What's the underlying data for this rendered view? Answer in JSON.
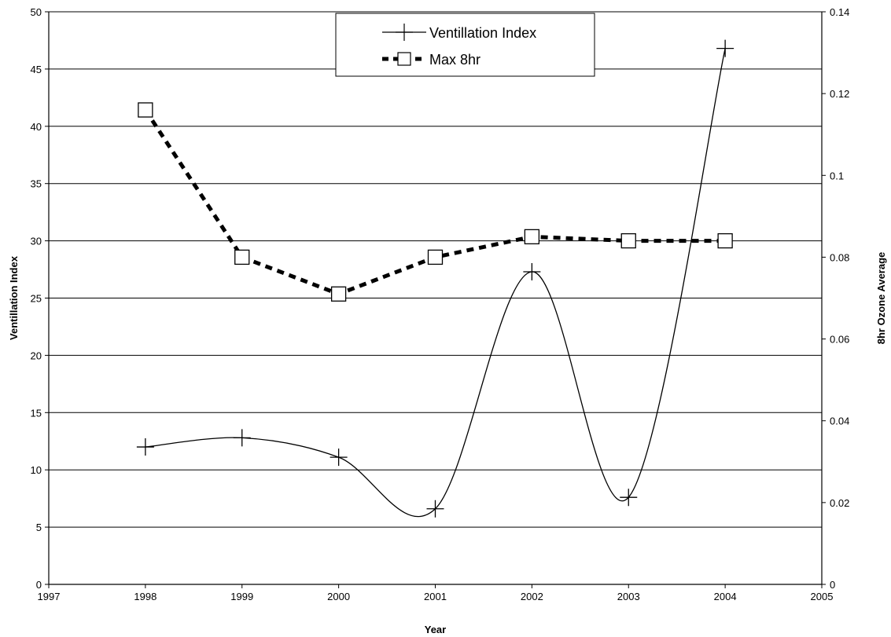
{
  "chart_data": {
    "type": "line",
    "xlabel": "Year",
    "ylabel": "Ventillation Index",
    "y2label": "8hr Ozone Average",
    "xlim": [
      1997,
      2005
    ],
    "xticks": [
      "1997",
      "1998",
      "1999",
      "2000",
      "2001",
      "2002",
      "2003",
      "2004",
      "2005"
    ],
    "ylim": [
      0,
      50
    ],
    "yticks": [
      "0",
      "5",
      "10",
      "15",
      "20",
      "25",
      "30",
      "35",
      "40",
      "45",
      "50"
    ],
    "y2lim": [
      0,
      0.14
    ],
    "y2ticks": [
      "0",
      "0.02",
      "0.04",
      "0.06",
      "0.08",
      "0.1",
      "0.12",
      "0.14"
    ],
    "grid": "horizontal",
    "legend_position": "top-center",
    "series": [
      {
        "name": "Ventillation Index",
        "axis": "left",
        "style": "solid-smooth",
        "marker": "plus",
        "color": "#000000",
        "x": [
          1998,
          1999,
          2000,
          2001,
          2002,
          2003,
          2004
        ],
        "values": [
          12.0,
          12.8,
          11.1,
          6.6,
          27.3,
          7.6,
          46.8
        ]
      },
      {
        "name": "Max 8hr",
        "axis": "right",
        "style": "dashed",
        "marker": "square",
        "color": "#000000",
        "x": [
          1998,
          1999,
          2000,
          2001,
          2002,
          2003,
          2004
        ],
        "values": [
          0.116,
          0.08,
          0.071,
          0.08,
          0.085,
          0.084,
          0.084
        ]
      }
    ]
  }
}
